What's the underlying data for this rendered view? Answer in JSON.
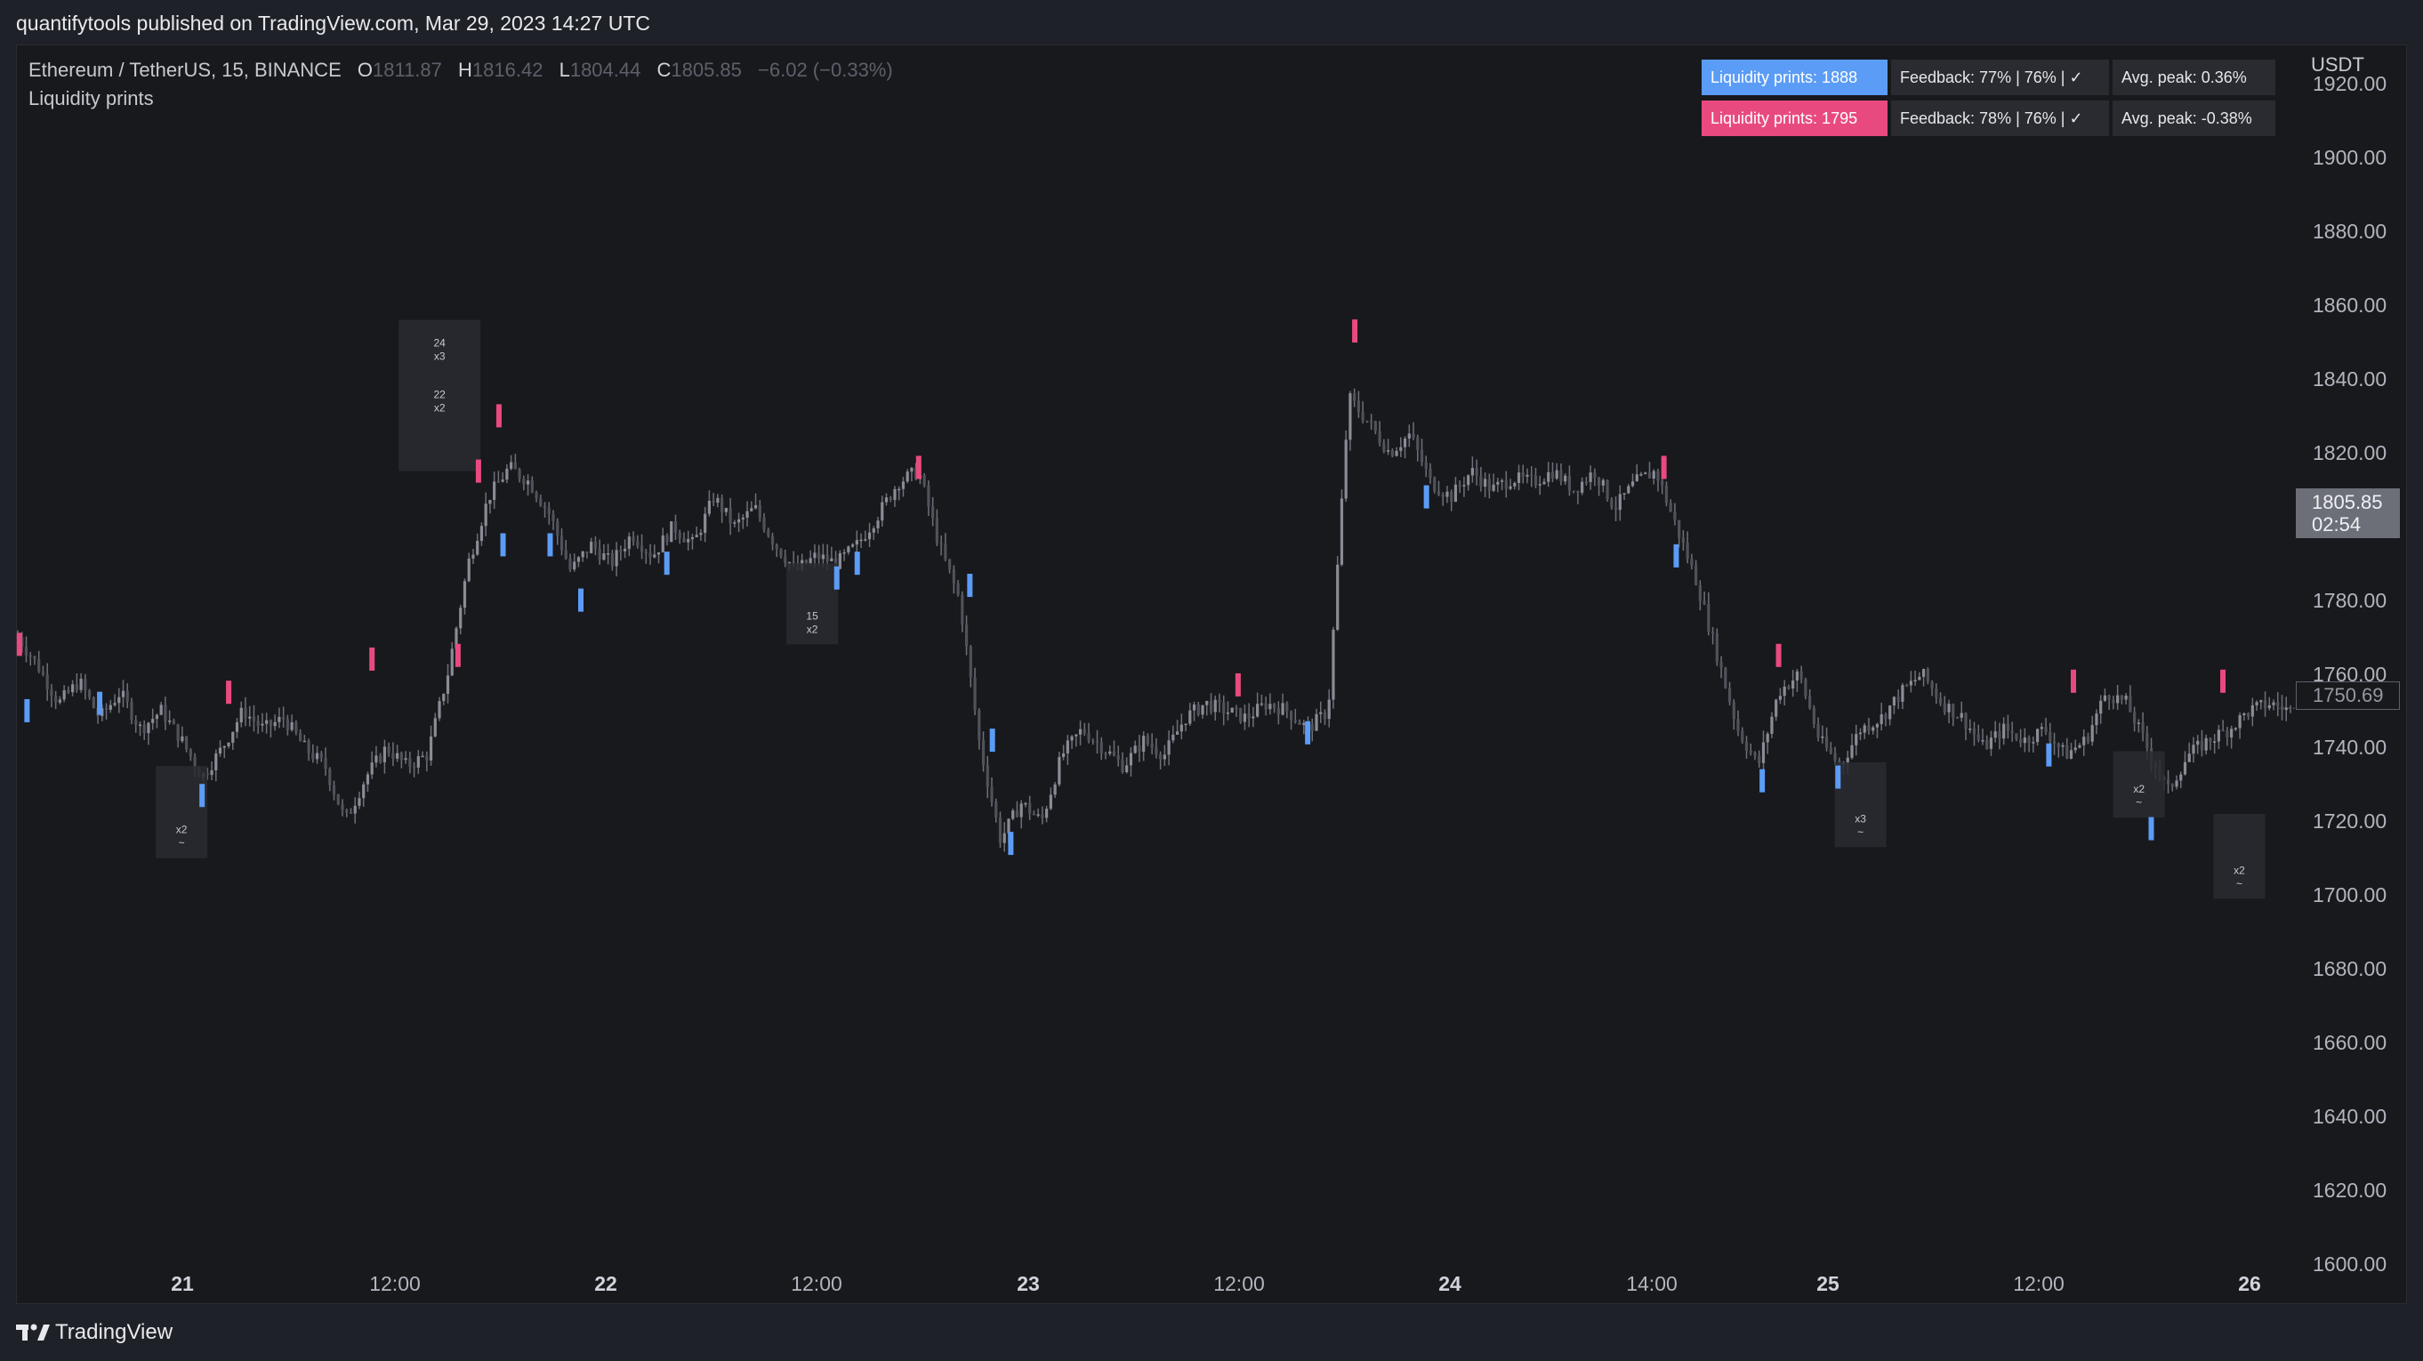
{
  "publisher": "quantifytools published on TradingView.com, Mar 29, 2023 14:27 UTC",
  "legend": {
    "symbol": "Ethereum / TetherUS, 15, BINANCE",
    "open_label": "O",
    "open": "1811.87",
    "high_label": "H",
    "high": "1816.42",
    "low_label": "L",
    "low": "1804.44",
    "close_label": "C",
    "close": "1805.85",
    "change": "−6.02 (−0.33%)",
    "indicator": "Liquidity prints"
  },
  "table": {
    "rows": [
      {
        "name": "Liquidity prints: 1888",
        "feedback": "Feedback: 77% | 76% | ✓",
        "peak": "Avg. peak: 0.36%",
        "color": "#5b9cf6"
      },
      {
        "name": "Liquidity prints: 1795",
        "feedback": "Feedback: 78% | 76% | ✓",
        "peak": "Avg. peak: -0.38%",
        "color": "#e84a7f"
      }
    ]
  },
  "axis": {
    "unit": "USDT",
    "price_labels": [
      "1920.00",
      "1900.00",
      "1880.00",
      "1860.00",
      "1840.00",
      "1820.00",
      "1780.00",
      "1760.00",
      "1740.00",
      "1720.00",
      "1700.00",
      "1680.00",
      "1660.00",
      "1640.00",
      "1620.00",
      "1600.00"
    ],
    "time_labels": [
      {
        "text": "21",
        "day": true
      },
      {
        "text": "12:00",
        "day": false
      },
      {
        "text": "22",
        "day": true
      },
      {
        "text": "12:00",
        "day": false
      },
      {
        "text": "23",
        "day": true
      },
      {
        "text": "12:00",
        "day": false
      },
      {
        "text": "24",
        "day": true
      },
      {
        "text": "14:00",
        "day": false
      },
      {
        "text": "25",
        "day": true
      },
      {
        "text": "12:00",
        "day": false
      },
      {
        "text": "26",
        "day": true
      }
    ]
  },
  "current_price": {
    "price": "1805.85",
    "countdown": "02:54"
  },
  "crosshair_price": "1750.69",
  "colors": {
    "bull_print": "#5b9cf6",
    "bear_print": "#e84a7f",
    "candle": "#6e7079",
    "background": "#18191d"
  },
  "chart_data": {
    "type": "candlestick",
    "ylim": [
      1590,
      1930
    ],
    "price_path": [
      [
        0,
        1770
      ],
      [
        1,
        1762
      ],
      [
        2,
        1752
      ],
      [
        3,
        1758
      ],
      [
        4,
        1748
      ],
      [
        5,
        1755
      ],
      [
        6,
        1745
      ],
      [
        7,
        1750
      ],
      [
        8,
        1742
      ],
      [
        9,
        1732
      ],
      [
        10,
        1740
      ],
      [
        11,
        1750
      ],
      [
        12,
        1745
      ],
      [
        13,
        1748
      ],
      [
        14,
        1740
      ],
      [
        15,
        1735
      ],
      [
        16,
        1720
      ],
      [
        17,
        1732
      ],
      [
        18,
        1740
      ],
      [
        19,
        1735
      ],
      [
        20,
        1738
      ],
      [
        21,
        1760
      ],
      [
        22,
        1790
      ],
      [
        23,
        1808
      ],
      [
        24,
        1816
      ],
      [
        25,
        1812
      ],
      [
        26,
        1803
      ],
      [
        27,
        1788
      ],
      [
        28,
        1795
      ],
      [
        29,
        1790
      ],
      [
        30,
        1798
      ],
      [
        31,
        1792
      ],
      [
        32,
        1800
      ],
      [
        33,
        1795
      ],
      [
        34,
        1808
      ],
      [
        35,
        1800
      ],
      [
        36,
        1805
      ],
      [
        37,
        1795
      ],
      [
        38,
        1788
      ],
      [
        39,
        1792
      ],
      [
        40,
        1790
      ],
      [
        41,
        1795
      ],
      [
        42,
        1803
      ],
      [
        43,
        1812
      ],
      [
        44,
        1815
      ],
      [
        45,
        1795
      ],
      [
        46,
        1780
      ],
      [
        47,
        1740
      ],
      [
        48,
        1715
      ],
      [
        49,
        1725
      ],
      [
        50,
        1720
      ],
      [
        51,
        1738
      ],
      [
        52,
        1745
      ],
      [
        53,
        1740
      ],
      [
        54,
        1735
      ],
      [
        55,
        1742
      ],
      [
        56,
        1738
      ],
      [
        57,
        1748
      ],
      [
        58,
        1752
      ],
      [
        59,
        1750
      ],
      [
        60,
        1748
      ],
      [
        61,
        1752
      ],
      [
        62,
        1750
      ],
      [
        63,
        1745
      ],
      [
        64,
        1750
      ],
      [
        65,
        1835
      ],
      [
        66,
        1828
      ],
      [
        67,
        1820
      ],
      [
        68,
        1825
      ],
      [
        69,
        1812
      ],
      [
        70,
        1808
      ],
      [
        71,
        1815
      ],
      [
        72,
        1810
      ],
      [
        73,
        1813
      ],
      [
        74,
        1812
      ],
      [
        75,
        1815
      ],
      [
        76,
        1810
      ],
      [
        77,
        1815
      ],
      [
        78,
        1805
      ],
      [
        79,
        1812
      ],
      [
        80,
        1815
      ],
      [
        81,
        1800
      ],
      [
        82,
        1785
      ],
      [
        83,
        1765
      ],
      [
        84,
        1745
      ],
      [
        85,
        1735
      ],
      [
        86,
        1755
      ],
      [
        87,
        1760
      ],
      [
        88,
        1742
      ],
      [
        89,
        1735
      ],
      [
        90,
        1745
      ],
      [
        91,
        1748
      ],
      [
        92,
        1755
      ],
      [
        93,
        1760
      ],
      [
        94,
        1752
      ],
      [
        95,
        1748
      ],
      [
        96,
        1740
      ],
      [
        97,
        1745
      ],
      [
        98,
        1742
      ],
      [
        99,
        1745
      ],
      [
        100,
        1738
      ],
      [
        101,
        1742
      ],
      [
        102,
        1755
      ],
      [
        103,
        1752
      ],
      [
        104,
        1740
      ],
      [
        105,
        1728
      ],
      [
        106,
        1738
      ],
      [
        107,
        1742
      ],
      [
        108,
        1745
      ],
      [
        109,
        1750
      ],
      [
        110,
        1752
      ],
      [
        111,
        1750
      ]
    ],
    "print_markers": [
      {
        "x": 0.08,
        "price": 1768,
        "side": "bear"
      },
      {
        "x": 0.45,
        "price": 1750,
        "side": "bull"
      },
      {
        "x": 4.0,
        "price": 1752,
        "side": "bull"
      },
      {
        "x": 9.0,
        "price": 1727,
        "side": "bull"
      },
      {
        "x": 10.3,
        "price": 1755,
        "side": "bear"
      },
      {
        "x": 17.3,
        "price": 1764,
        "side": "bear"
      },
      {
        "x": 21.5,
        "price": 1765,
        "side": "bear"
      },
      {
        "x": 22.5,
        "price": 1815,
        "side": "bear"
      },
      {
        "x": 23.5,
        "price": 1830,
        "side": "bear"
      },
      {
        "x": 23.7,
        "price": 1795,
        "side": "bull"
      },
      {
        "x": 26.0,
        "price": 1795,
        "side": "bull"
      },
      {
        "x": 27.5,
        "price": 1780,
        "side": "bull"
      },
      {
        "x": 31.7,
        "price": 1790,
        "side": "bull"
      },
      {
        "x": 40.0,
        "price": 1786,
        "side": "bull"
      },
      {
        "x": 41.0,
        "price": 1790,
        "side": "bull"
      },
      {
        "x": 44.0,
        "price": 1816,
        "side": "bear"
      },
      {
        "x": 46.5,
        "price": 1784,
        "side": "bull"
      },
      {
        "x": 47.6,
        "price": 1742,
        "side": "bull"
      },
      {
        "x": 48.5,
        "price": 1714,
        "side": "bull"
      },
      {
        "x": 59.6,
        "price": 1757,
        "side": "bear"
      },
      {
        "x": 63.0,
        "price": 1744,
        "side": "bull"
      },
      {
        "x": 65.3,
        "price": 1853,
        "side": "bear"
      },
      {
        "x": 68.8,
        "price": 1808,
        "side": "bull"
      },
      {
        "x": 80.4,
        "price": 1816,
        "side": "bear"
      },
      {
        "x": 81.0,
        "price": 1792,
        "side": "bull"
      },
      {
        "x": 85.2,
        "price": 1731,
        "side": "bull"
      },
      {
        "x": 86.0,
        "price": 1765,
        "side": "bear"
      },
      {
        "x": 88.9,
        "price": 1732,
        "side": "bull"
      },
      {
        "x": 99.2,
        "price": 1738,
        "side": "bull"
      },
      {
        "x": 100.4,
        "price": 1758,
        "side": "bear"
      },
      {
        "x": 104.2,
        "price": 1718,
        "side": "bull"
      },
      {
        "x": 107.7,
        "price": 1758,
        "side": "bear"
      }
    ],
    "annotation_boxes": [
      {
        "x": 8.0,
        "top": 1735,
        "bottom": 1710,
        "lines": [
          "x2",
          "~"
        ]
      },
      {
        "x": 20.6,
        "top": 1856,
        "bottom": 1815,
        "lines": [
          "24",
          "x3",
          "22",
          "x2"
        ]
      },
      {
        "x": 38.8,
        "top": 1790,
        "bottom": 1768,
        "lines": [
          "15",
          "x2"
        ]
      },
      {
        "x": 90.0,
        "top": 1736,
        "bottom": 1713,
        "lines": [
          "x3",
          "~"
        ]
      },
      {
        "x": 103.6,
        "top": 1739,
        "bottom": 1721,
        "lines": [
          "x2",
          "~"
        ]
      },
      {
        "x": 108.5,
        "top": 1722,
        "bottom": 1699,
        "lines": [
          "x2",
          "~"
        ]
      }
    ]
  }
}
